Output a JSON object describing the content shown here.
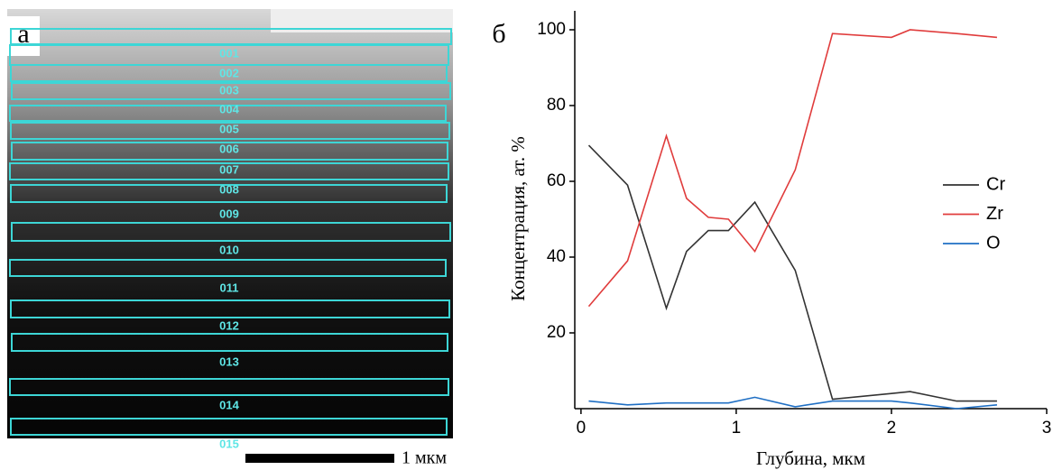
{
  "panel_labels": [
    "а",
    "б"
  ],
  "micrograph": {
    "regions": [
      "001",
      "002",
      "003",
      "004",
      "005",
      "006",
      "007",
      "008",
      "009",
      "010",
      "011",
      "012",
      "013",
      "014",
      "015"
    ],
    "scale_bar": "1 мкм"
  },
  "chart_data": {
    "type": "line",
    "x_label": "Глубина, мкм",
    "y_label": "Концентрация, ат. %",
    "x": [
      0.05,
      0.3,
      0.55,
      0.68,
      0.82,
      0.95,
      1.12,
      1.38,
      1.62,
      2.0,
      2.12,
      2.42,
      2.68
    ],
    "series": [
      {
        "name": "Cr",
        "color": "#333333",
        "values": [
          69.5,
          59,
          26.5,
          41.5,
          47,
          47,
          54.5,
          36.5,
          2.5,
          4,
          4.5,
          2,
          2
        ]
      },
      {
        "name": "Zr",
        "color": "#e03c3c",
        "values": [
          27,
          39,
          72,
          55.5,
          50.5,
          50,
          41.5,
          63,
          99,
          98,
          100,
          99,
          98
        ]
      },
      {
        "name": "O",
        "color": "#1f6fc4",
        "values": [
          2,
          1,
          1.5,
          1.5,
          1.5,
          1.5,
          3,
          0.5,
          2,
          2,
          1.5,
          0,
          1
        ]
      }
    ],
    "xlim": [
      -0.04,
      3
    ],
    "ylim": [
      0,
      105
    ],
    "xticks": [
      0,
      1,
      2,
      3
    ],
    "yticks": [
      20,
      40,
      60,
      80,
      100
    ],
    "legend": "right"
  }
}
